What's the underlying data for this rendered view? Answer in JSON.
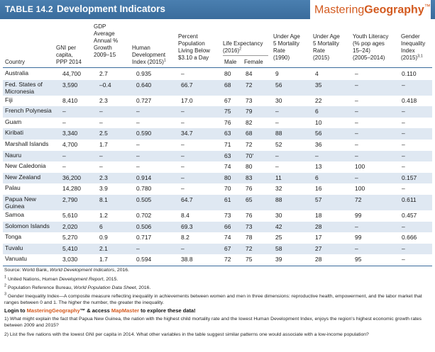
{
  "header": {
    "table_number": "TABLE 14.2",
    "title": "Development Indicators",
    "brand_part1": "Mastering",
    "brand_part2": "Geography",
    "brand_tm": "™"
  },
  "columns": {
    "country": "Country",
    "gni": "GNI per\ncapita,\nPPP 2014",
    "gdp": "GDP\nAverage\nAnnual %\nGrowth\n2009–15",
    "hdi": "Human\nDevelopment\nIndex (2015)",
    "hdi_sup": "1",
    "poverty": "Percent\nPopulation\nLiving Below\n$3.10 a Day",
    "life": "Life Expectancy\n(2016)",
    "life_sup": "2",
    "male": "Male",
    "female": "Female",
    "u5_1990": "Under Age\n5 Mortality\nRate\n(1990)",
    "u5_2015": "Under Age\n5 Mortality\nRate\n(2015)",
    "literacy": "Youth Literacy\n(% pop ages\n15–24)\n(2005–2014)",
    "gii": "Gender\nInequality\nIndex\n(2015)",
    "gii_sup": "3,1"
  },
  "rows": [
    {
      "country": "Australia",
      "gni": "44,700",
      "gdp": "2.7",
      "hdi": "0.935",
      "poverty": "–",
      "male": "80",
      "female": "84",
      "u5_1990": "9",
      "u5_2015": "4",
      "literacy": "–",
      "gii": "0.110"
    },
    {
      "country": "Fed. States of\nMicronesia",
      "gni": "3,590",
      "gdp": "–0.4",
      "hdi": "0.640",
      "poverty": "66.7",
      "male": "68",
      "female": "72",
      "u5_1990": "56",
      "u5_2015": "35",
      "literacy": "–",
      "gii": "–"
    },
    {
      "country": "Fiji",
      "gni": "8,410",
      "gdp": "2.3",
      "hdi": "0.727",
      "poverty": "17.0",
      "male": "67",
      "female": "73",
      "u5_1990": "30",
      "u5_2015": "22",
      "literacy": "–",
      "gii": "0.418"
    },
    {
      "country": "French Polynesia",
      "gni": "–",
      "gdp": "–",
      "hdi": "–",
      "poverty": "–",
      "male": "75",
      "female": "79",
      "u5_1990": "–",
      "u5_2015": "6",
      "literacy": "–",
      "gii": "–"
    },
    {
      "country": "Guam",
      "gni": "–",
      "gdp": "–",
      "hdi": "–",
      "poverty": "–",
      "male": "76",
      "female": "82",
      "u5_1990": "–",
      "u5_2015": "10",
      "literacy": "–",
      "gii": "–"
    },
    {
      "country": "Kiribati",
      "gni": "3,340",
      "gdp": "2.5",
      "hdi": "0.590",
      "poverty": "34.7",
      "male": "63",
      "female": "68",
      "u5_1990": "88",
      "u5_2015": "56",
      "literacy": "–",
      "gii": "–"
    },
    {
      "country": "Marshall Islands",
      "gni": "4,700",
      "gdp": "1.7",
      "hdi": "–",
      "poverty": "–",
      "male": "71",
      "female": "72",
      "u5_1990": "52",
      "u5_2015": "36",
      "literacy": "–",
      "gii": "–"
    },
    {
      "country": "Nauru",
      "gni": "–",
      "gdp": "–",
      "hdi": "–",
      "poverty": "–",
      "male": "63",
      "female": "70'",
      "u5_1990": "–",
      "u5_2015": "–",
      "literacy": "–",
      "gii": "–"
    },
    {
      "country": "New Caledonia",
      "gni": "–",
      "gdp": "–",
      "hdi": "–",
      "poverty": "–",
      "male": "74",
      "female": "80",
      "u5_1990": "–",
      "u5_2015": "13",
      "literacy": "100",
      "gii": "–"
    },
    {
      "country": "New Zealand",
      "gni": "36,200",
      "gdp": "2.3",
      "hdi": "0.914",
      "poverty": "–",
      "male": "80",
      "female": "83",
      "u5_1990": "11",
      "u5_2015": "6",
      "literacy": "–",
      "gii": "0.157"
    },
    {
      "country": "Palau",
      "gni": "14,280",
      "gdp": "3.9",
      "hdi": "0.780",
      "poverty": "–",
      "male": "70",
      "female": "76",
      "u5_1990": "32",
      "u5_2015": "16",
      "literacy": "100",
      "gii": "–"
    },
    {
      "country": "Papua New\nGuinea",
      "gni": "2,790",
      "gdp": "8.1",
      "hdi": "0.505",
      "poverty": "64.7",
      "male": "61",
      "female": "65",
      "u5_1990": "88",
      "u5_2015": "57",
      "literacy": "72",
      "gii": "0.611"
    },
    {
      "country": "Samoa",
      "gni": "5,610",
      "gdp": "1.2",
      "hdi": "0.702",
      "poverty": "8.4",
      "male": "73",
      "female": "76",
      "u5_1990": "30",
      "u5_2015": "18",
      "literacy": "99",
      "gii": "0.457"
    },
    {
      "country": "Solomon Islands",
      "gni": "2,020",
      "gdp": "6",
      "hdi": "0.506",
      "poverty": "69.3",
      "male": "66",
      "female": "73",
      "u5_1990": "42",
      "u5_2015": "28",
      "literacy": "–",
      "gii": "–"
    },
    {
      "country": "Tonga",
      "gni": "5,270",
      "gdp": "0.9",
      "hdi": "0.717",
      "poverty": "8.2",
      "male": "74",
      "female": "78",
      "u5_1990": "25",
      "u5_2015": "17",
      "literacy": "99",
      "gii": "0.666"
    },
    {
      "country": "Tuvalu",
      "gni": "5,410",
      "gdp": "2.1",
      "hdi": "–",
      "poverty": "–",
      "male": "67",
      "female": "72",
      "u5_1990": "58",
      "u5_2015": "27",
      "literacy": "–",
      "gii": "–"
    },
    {
      "country": "Vanuatu",
      "gni": "3,030",
      "gdp": "1.7",
      "hdi": "0.594",
      "poverty": "38.8",
      "male": "72",
      "female": "75",
      "u5_1990": "39",
      "u5_2015": "28",
      "literacy": "95",
      "gii": "–"
    }
  ],
  "footer": {
    "source_prefix": "Source: World Bank, ",
    "source_title": "World Development Indicators",
    "source_suffix": ", 2016.",
    "note1_prefix": "United Nations, ",
    "note1_title": "Human Development Report",
    "note1_suffix": ", 2015.",
    "note2_prefix": "Population Reference Bureau, ",
    "note2_title": "World Population Data Sheet",
    "note2_suffix": ", 2016.",
    "note3": "Gender Inequality Index—A composite measure reflecting inequality in achievements between women and men in three dimensions: reproductive health, empowerment, and the labor market that ranges between 0 and 1. The higher the number, the greater the inequality.",
    "login_pre": "Login to ",
    "login_mg": "MasteringGeography",
    "login_mid": "™ & access ",
    "login_mm": "MapMaster",
    "login_post": " to explore these data!",
    "q1": "1)  What might explain the fact that Papua New Guinea, the nation with the highest child mortality rate and the lowest Human Development Index, enjoys the region's highest economic growth rates between 2009 and 2015?",
    "q2": "2)  List the five nations with the lowest GNI per capita in 2014. What other variables in the table suggest similar patterns one would associate with a low-income population?"
  }
}
